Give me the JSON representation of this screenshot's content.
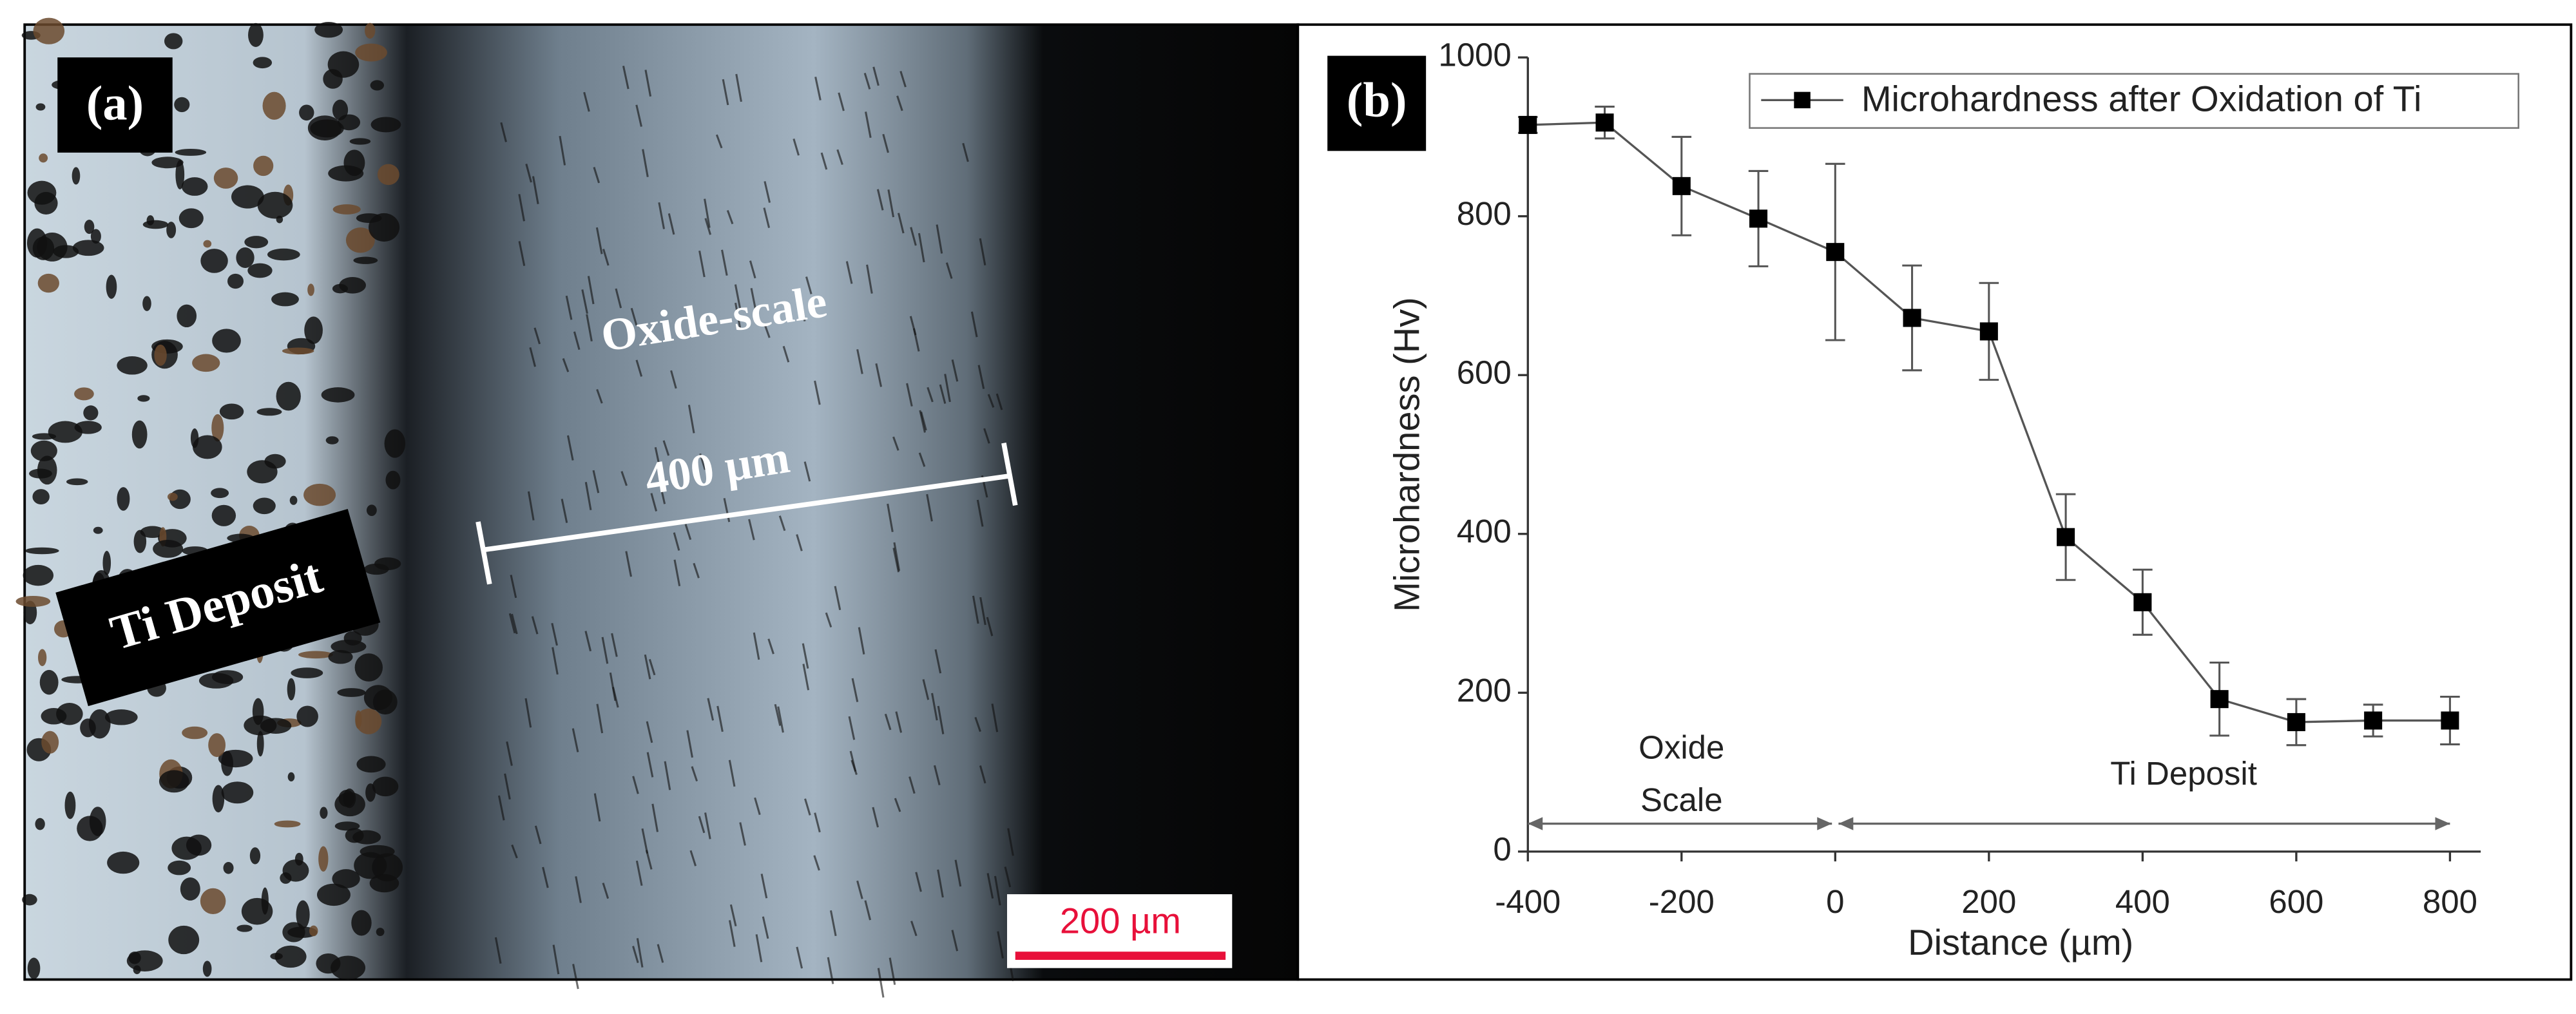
{
  "panel_a": {
    "label": "(a)",
    "oxide_label": "Oxide-scale",
    "width_label": "400 µm",
    "deposit_label": "Ti Deposit",
    "scale_bar": "200 µm"
  },
  "chart_data": {
    "type": "line",
    "label": "(b)",
    "x_label": "Distance (µm)",
    "y_label": "Microhardness (Hv)",
    "x": [
      -400,
      -300,
      -200,
      -100,
      0,
      100,
      200,
      300,
      400,
      500,
      600,
      700,
      800
    ],
    "series": [
      {
        "name": "Microhardness after Oxidation of Ti",
        "color": "#000000",
        "line_color": "#555555",
        "values": [
          915,
          918,
          838,
          797,
          755,
          672,
          655,
          396,
          314,
          192,
          163,
          165,
          165
        ],
        "errors": [
          10,
          20,
          62,
          60,
          111,
          66,
          61,
          54,
          41,
          46,
          29,
          20,
          30
        ]
      }
    ],
    "xlim": [
      -400,
      840
    ],
    "ylim": [
      0,
      1000
    ],
    "xticks": [
      -400,
      -200,
      0,
      200,
      400,
      600,
      800
    ],
    "yticks": [
      0,
      200,
      400,
      600,
      800,
      1000
    ],
    "annotations": [
      [
        "Oxide",
        "Scale"
      ],
      [
        "Ti Deposit"
      ]
    ],
    "legend": "upper right"
  }
}
